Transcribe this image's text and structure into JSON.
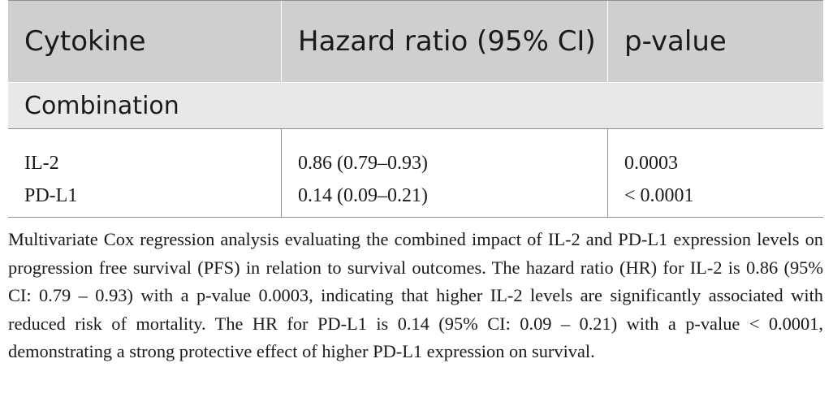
{
  "table": {
    "headers": [
      "Cytokine",
      "Hazard ratio (95% CI)",
      "p-value"
    ],
    "section_label": "Combination",
    "rows": [
      {
        "cytokine": "IL-2",
        "hazard_ratio": "0.86 (0.79–0.93)",
        "p_value": "0.0003"
      },
      {
        "cytokine": "PD-L1",
        "hazard_ratio": "0.14 (0.09–0.21)",
        "p_value": "< 0.0001"
      }
    ]
  },
  "caption": "Multivariate Cox regression analysis evaluating the combined impact of IL-2 and PD-L1 expression levels on progression free survival (PFS) in relation to survival outcomes. The hazard ratio (HR) for IL-2 is 0.86 (95% CI: 0.79 – 0.93) with a p-value 0.0003, indicating that higher IL-2 levels are significantly associated with reduced risk of mortality. The HR for PD-L1 is 0.14 (95% CI: 0.09 – 0.21) with a p-value < 0.0001, demonstrating a strong protective effect of higher PD-L1 expression on survival."
}
